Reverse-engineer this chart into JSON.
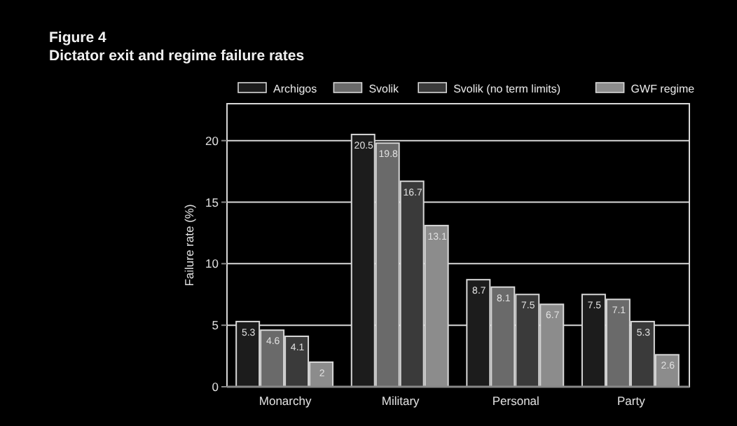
{
  "chart_data": {
    "type": "bar",
    "title": "Figure 4",
    "subtitle": "Dictator exit and regime failure rates",
    "ylabel": "Failure rate (%)",
    "categories": [
      "Monarchy",
      "Military",
      "Personal",
      "Party"
    ],
    "series": [
      {
        "name": "Archigos",
        "color": "#1c1c1c",
        "values": [
          5.3,
          20.5,
          8.7,
          7.5
        ]
      },
      {
        "name": "Svolik",
        "color": "#6a6a6a",
        "values": [
          4.6,
          19.8,
          8.1,
          7.1
        ]
      },
      {
        "name": "Svolik (no term limits)",
        "color": "#3a3a3a",
        "values": [
          4.1,
          16.7,
          7.5,
          5.3
        ]
      },
      {
        "name": "GWF regime",
        "color": "#8c8c8c",
        "values": [
          2,
          13.1,
          6.7,
          2.6
        ]
      }
    ],
    "ylim": [
      0,
      23
    ],
    "yticks": [
      0,
      5,
      10,
      15,
      20
    ],
    "grid": "y",
    "legend": "top",
    "data_labels": true
  }
}
